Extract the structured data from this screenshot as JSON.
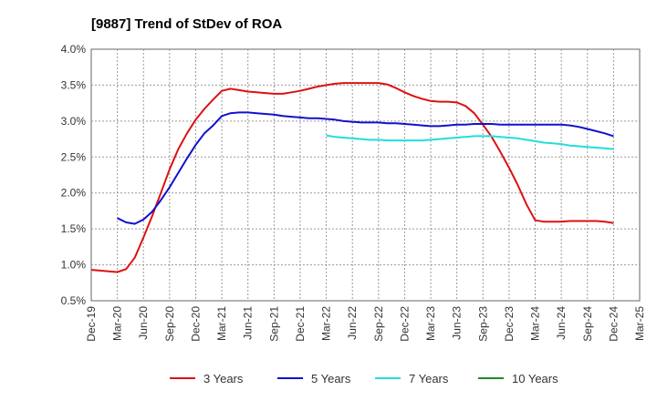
{
  "chart_data": {
    "type": "line",
    "title": "[9887]  Trend of StDev of ROA",
    "x_ticks": [
      "Dec-19",
      "Mar-20",
      "Jun-20",
      "Sep-20",
      "Dec-20",
      "Mar-21",
      "Jun-21",
      "Sep-21",
      "Dec-21",
      "Mar-22",
      "Jun-22",
      "Sep-22",
      "Dec-22",
      "Mar-23",
      "Jun-23",
      "Sep-23",
      "Dec-23",
      "Mar-24",
      "Jun-24",
      "Sep-24",
      "Dec-24",
      "Mar-25"
    ],
    "y_ticks": [
      "0.5%",
      "1.0%",
      "1.5%",
      "2.0%",
      "2.5%",
      "3.0%",
      "3.5%",
      "4.0%"
    ],
    "ylim": [
      0.5,
      4.0
    ],
    "y_unit": "%",
    "grid": true,
    "legend_position": "bottom",
    "series": [
      {
        "name": "3 Years",
        "color": "#dd1111",
        "points": [
          [
            "2019-12",
            0.93
          ],
          [
            "2020-01",
            0.92
          ],
          [
            "2020-02",
            0.91
          ],
          [
            "2020-03",
            0.9
          ],
          [
            "2020-04",
            0.94
          ],
          [
            "2020-05",
            1.1
          ],
          [
            "2020-06",
            1.38
          ],
          [
            "2020-07",
            1.68
          ],
          [
            "2020-08",
            2.0
          ],
          [
            "2020-09",
            2.33
          ],
          [
            "2020-10",
            2.61
          ],
          [
            "2020-11",
            2.83
          ],
          [
            "2020-12",
            3.02
          ],
          [
            "2021-01",
            3.17
          ],
          [
            "2021-02",
            3.3
          ],
          [
            "2021-03",
            3.42
          ],
          [
            "2021-04",
            3.45
          ],
          [
            "2021-05",
            3.43
          ],
          [
            "2021-06",
            3.41
          ],
          [
            "2021-07",
            3.4
          ],
          [
            "2021-08",
            3.39
          ],
          [
            "2021-09",
            3.38
          ],
          [
            "2021-10",
            3.38
          ],
          [
            "2021-11",
            3.4
          ],
          [
            "2021-12",
            3.42
          ],
          [
            "2022-01",
            3.45
          ],
          [
            "2022-02",
            3.48
          ],
          [
            "2022-03",
            3.5
          ],
          [
            "2022-04",
            3.52
          ],
          [
            "2022-05",
            3.53
          ],
          [
            "2022-06",
            3.53
          ],
          [
            "2022-07",
            3.53
          ],
          [
            "2022-08",
            3.53
          ],
          [
            "2022-09",
            3.53
          ],
          [
            "2022-10",
            3.51
          ],
          [
            "2022-11",
            3.46
          ],
          [
            "2022-12",
            3.4
          ],
          [
            "2023-01",
            3.35
          ],
          [
            "2023-02",
            3.31
          ],
          [
            "2023-03",
            3.28
          ],
          [
            "2023-04",
            3.27
          ],
          [
            "2023-05",
            3.27
          ],
          [
            "2023-06",
            3.26
          ],
          [
            "2023-07",
            3.21
          ],
          [
            "2023-08",
            3.11
          ],
          [
            "2023-09",
            2.95
          ],
          [
            "2023-10",
            2.78
          ],
          [
            "2023-11",
            2.57
          ],
          [
            "2023-12",
            2.35
          ],
          [
            "2024-01",
            2.11
          ],
          [
            "2024-02",
            1.84
          ],
          [
            "2024-03",
            1.62
          ],
          [
            "2024-04",
            1.6
          ],
          [
            "2024-05",
            1.6
          ],
          [
            "2024-06",
            1.6
          ],
          [
            "2024-07",
            1.61
          ],
          [
            "2024-08",
            1.61
          ],
          [
            "2024-09",
            1.61
          ],
          [
            "2024-10",
            1.61
          ],
          [
            "2024-11",
            1.6
          ],
          [
            "2024-12",
            1.58
          ]
        ]
      },
      {
        "name": "5 Years",
        "color": "#1111cc",
        "points": [
          [
            "2020-03",
            1.65
          ],
          [
            "2020-04",
            1.59
          ],
          [
            "2020-05",
            1.57
          ],
          [
            "2020-06",
            1.63
          ],
          [
            "2020-07",
            1.74
          ],
          [
            "2020-08",
            1.9
          ],
          [
            "2020-09",
            2.08
          ],
          [
            "2020-10",
            2.28
          ],
          [
            "2020-11",
            2.48
          ],
          [
            "2020-12",
            2.67
          ],
          [
            "2021-01",
            2.83
          ],
          [
            "2021-02",
            2.94
          ],
          [
            "2021-03",
            3.07
          ],
          [
            "2021-04",
            3.11
          ],
          [
            "2021-05",
            3.12
          ],
          [
            "2021-06",
            3.12
          ],
          [
            "2021-07",
            3.11
          ],
          [
            "2021-08",
            3.1
          ],
          [
            "2021-09",
            3.09
          ],
          [
            "2021-10",
            3.07
          ],
          [
            "2021-11",
            3.06
          ],
          [
            "2021-12",
            3.05
          ],
          [
            "2022-01",
            3.04
          ],
          [
            "2022-02",
            3.04
          ],
          [
            "2022-03",
            3.03
          ],
          [
            "2022-04",
            3.02
          ],
          [
            "2022-05",
            3.0
          ],
          [
            "2022-06",
            2.99
          ],
          [
            "2022-07",
            2.98
          ],
          [
            "2022-08",
            2.98
          ],
          [
            "2022-09",
            2.98
          ],
          [
            "2022-10",
            2.97
          ],
          [
            "2022-11",
            2.97
          ],
          [
            "2022-12",
            2.96
          ],
          [
            "2023-01",
            2.95
          ],
          [
            "2023-02",
            2.94
          ],
          [
            "2023-03",
            2.93
          ],
          [
            "2023-04",
            2.93
          ],
          [
            "2023-05",
            2.94
          ],
          [
            "2023-06",
            2.95
          ],
          [
            "2023-07",
            2.95
          ],
          [
            "2023-08",
            2.96
          ],
          [
            "2023-09",
            2.96
          ],
          [
            "2023-10",
            2.96
          ],
          [
            "2023-11",
            2.95
          ],
          [
            "2023-12",
            2.95
          ],
          [
            "2024-01",
            2.95
          ],
          [
            "2024-02",
            2.95
          ],
          [
            "2024-03",
            2.95
          ],
          [
            "2024-04",
            2.95
          ],
          [
            "2024-05",
            2.95
          ],
          [
            "2024-06",
            2.95
          ],
          [
            "2024-07",
            2.94
          ],
          [
            "2024-08",
            2.92
          ],
          [
            "2024-09",
            2.89
          ],
          [
            "2024-10",
            2.86
          ],
          [
            "2024-11",
            2.83
          ],
          [
            "2024-12",
            2.79
          ]
        ]
      },
      {
        "name": "7 Years",
        "color": "#22dddd",
        "points": [
          [
            "2022-03",
            2.8
          ],
          [
            "2022-04",
            2.78
          ],
          [
            "2022-05",
            2.77
          ],
          [
            "2022-06",
            2.76
          ],
          [
            "2022-07",
            2.75
          ],
          [
            "2022-08",
            2.74
          ],
          [
            "2022-09",
            2.74
          ],
          [
            "2022-10",
            2.73
          ],
          [
            "2022-11",
            2.73
          ],
          [
            "2022-12",
            2.73
          ],
          [
            "2023-01",
            2.73
          ],
          [
            "2023-02",
            2.73
          ],
          [
            "2023-03",
            2.74
          ],
          [
            "2023-04",
            2.75
          ],
          [
            "2023-05",
            2.76
          ],
          [
            "2023-06",
            2.77
          ],
          [
            "2023-07",
            2.78
          ],
          [
            "2023-08",
            2.79
          ],
          [
            "2023-09",
            2.79
          ],
          [
            "2023-10",
            2.79
          ],
          [
            "2023-11",
            2.78
          ],
          [
            "2023-12",
            2.77
          ],
          [
            "2024-01",
            2.76
          ],
          [
            "2024-02",
            2.74
          ],
          [
            "2024-03",
            2.72
          ],
          [
            "2024-04",
            2.7
          ],
          [
            "2024-05",
            2.69
          ],
          [
            "2024-06",
            2.68
          ],
          [
            "2024-07",
            2.66
          ],
          [
            "2024-08",
            2.65
          ],
          [
            "2024-09",
            2.64
          ],
          [
            "2024-10",
            2.63
          ],
          [
            "2024-11",
            2.62
          ],
          [
            "2024-12",
            2.61
          ]
        ]
      },
      {
        "name": "10 Years",
        "color": "#228822",
        "points": []
      }
    ]
  }
}
